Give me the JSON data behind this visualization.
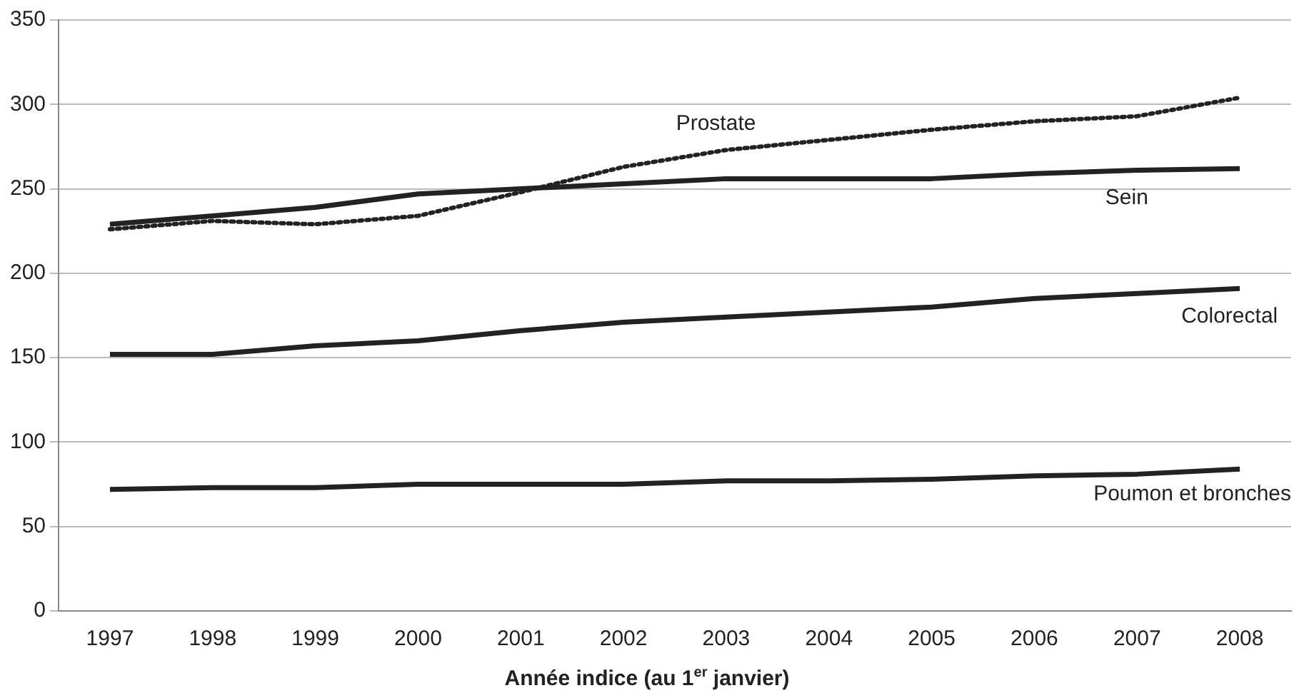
{
  "chart_data": {
    "type": "line",
    "xlabel": "Année indice (au 1$^{er}$ janvier)",
    "categories": [
      "1997",
      "1998",
      "1999",
      "2000",
      "2001",
      "2002",
      "2003",
      "2004",
      "2005",
      "2006",
      "2007",
      "2008"
    ],
    "series": [
      {
        "name": "Prostate",
        "color": "#222222",
        "line_style": "dotted",
        "values": [
          226,
          231,
          229,
          234,
          248,
          263,
          273,
          279,
          285,
          290,
          293,
          304
        ]
      },
      {
        "name": "Sein",
        "color": "#222222",
        "line_style": "solid",
        "values": [
          229,
          234,
          239,
          247,
          250,
          253,
          256,
          256,
          256,
          259,
          261,
          262
        ]
      },
      {
        "name": "Colorectal",
        "color": "#222222",
        "line_style": "solid",
        "values": [
          152,
          152,
          157,
          160,
          166,
          171,
          174,
          177,
          180,
          185,
          188,
          191
        ]
      },
      {
        "name": "Poumon et bronches",
        "color": "#222222",
        "line_style": "solid",
        "values": [
          72,
          73,
          73,
          75,
          75,
          75,
          77,
          77,
          78,
          80,
          81,
          84
        ]
      }
    ],
    "ylim": [
      0,
      350
    ],
    "yticks": [
      0,
      50,
      100,
      150,
      200,
      250,
      300,
      350
    ],
    "grid": "y",
    "legend": false,
    "marker": "none"
  }
}
